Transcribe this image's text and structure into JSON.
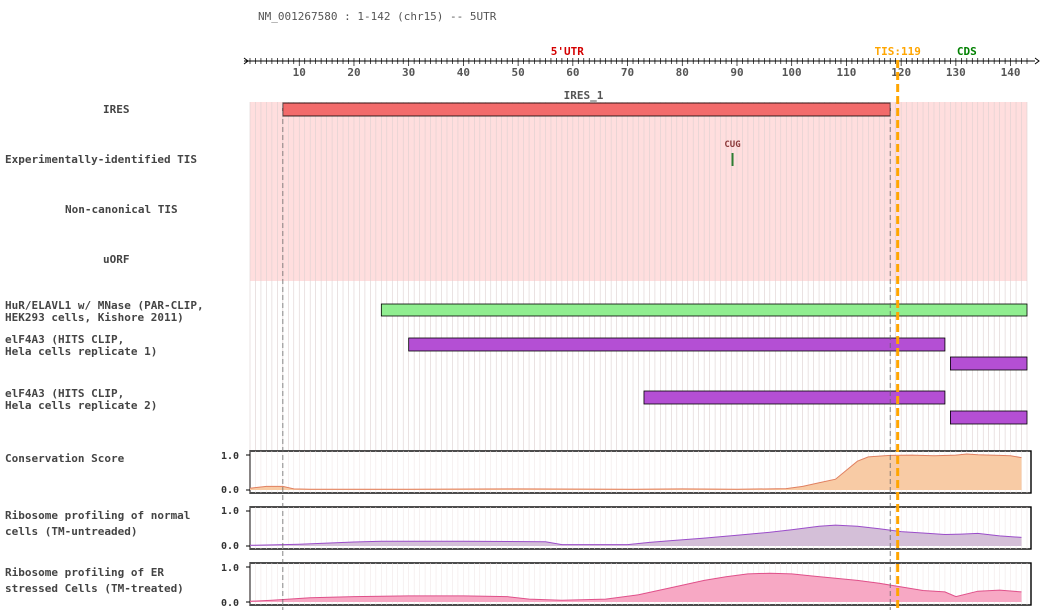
{
  "header": {
    "title": "NM_001267580 : 1-142 (chr15) -- 5UTR"
  },
  "axis": {
    "min": 1,
    "max": 142,
    "ticks": [
      10,
      20,
      30,
      40,
      50,
      60,
      70,
      80,
      90,
      100,
      110,
      120,
      130,
      140
    ],
    "region_5utr_label": "5'UTR",
    "cds_label": "CDS"
  },
  "tis": {
    "position": 119,
    "label": "TIS:119",
    "color": "#ffa500"
  },
  "colors": {
    "utr_label": "#d40000",
    "cds_label": "#008000",
    "utr_shade": "#ffdede",
    "grid_line": "#ddd0d0",
    "ires_bar": "#f26b6b",
    "hur_bar": "#90ee90",
    "eif4a3_bar": "#b44fd4",
    "tis_marker": "#2e7d32",
    "conservation": "#f8cba5",
    "conservation_line": "#e08060",
    "ribo_normal": "#d4bfd8",
    "ribo_normal_line": "#9b4dca",
    "ribo_er": "#f7a8c4",
    "ribo_er_line": "#e0508a"
  },
  "tracks": {
    "ires": {
      "label": "IRES",
      "start": 7,
      "end": 118,
      "name": "IRES_1"
    },
    "exp_tis": {
      "label": "Experimentally-identified TIS",
      "codon": "CUG",
      "position": 89
    },
    "noncanonical": {
      "label": "Non-canonical TIS"
    },
    "uorf": {
      "label": "uORF"
    },
    "hur": {
      "label_lines": [
        "HuR/ELAVL1 w/ MNase (PAR-CLIP,",
        "HEK293 cells, Kishore 2011)"
      ],
      "start": 25,
      "end": 142
    },
    "eif4a3_rep1": {
      "label_lines": [
        "elF4A3 (HITS CLIP,",
        "Hela cells replicate 1)"
      ],
      "segments": [
        [
          30,
          128
        ],
        [
          129,
          142
        ]
      ]
    },
    "eif4a3_rep2": {
      "label_lines": [
        "elF4A3 (HITS CLIP,",
        "Hela cells replicate 2)"
      ],
      "segments": [
        [
          73,
          128
        ],
        [
          129,
          142
        ]
      ]
    },
    "conservation": {
      "label": "Conservation Score",
      "ymax_label": "1.0",
      "ymin_label": "0.0",
      "values": [
        [
          1,
          0.05
        ],
        [
          4,
          0.1
        ],
        [
          7,
          0.1
        ],
        [
          9,
          0.03
        ],
        [
          12,
          0.02
        ],
        [
          30,
          0.02
        ],
        [
          50,
          0.03
        ],
        [
          70,
          0.02
        ],
        [
          80,
          0.03
        ],
        [
          90,
          0.02
        ],
        [
          99,
          0.04
        ],
        [
          102,
          0.1
        ],
        [
          105,
          0.2
        ],
        [
          108,
          0.3
        ],
        [
          110,
          0.55
        ],
        [
          112,
          0.8
        ],
        [
          114,
          0.92
        ],
        [
          118,
          0.96
        ],
        [
          122,
          0.97
        ],
        [
          126,
          0.95
        ],
        [
          130,
          0.97
        ],
        [
          132,
          1.0
        ],
        [
          134,
          0.98
        ],
        [
          138,
          0.96
        ],
        [
          140,
          0.95
        ],
        [
          142,
          0.9
        ]
      ]
    },
    "ribo_normal": {
      "label_lines": [
        "Ribosome profiling of normal",
        "cells (TM-untreaded)"
      ],
      "ymax_label": "1.0",
      "ymin_label": "0.0",
      "values": [
        [
          1,
          0.02
        ],
        [
          5,
          0.03
        ],
        [
          10,
          0.05
        ],
        [
          15,
          0.08
        ],
        [
          20,
          0.11
        ],
        [
          25,
          0.13
        ],
        [
          40,
          0.13
        ],
        [
          55,
          0.12
        ],
        [
          58,
          0.04
        ],
        [
          70,
          0.04
        ],
        [
          74,
          0.1
        ],
        [
          78,
          0.15
        ],
        [
          84,
          0.22
        ],
        [
          90,
          0.3
        ],
        [
          96,
          0.38
        ],
        [
          100,
          0.45
        ],
        [
          105,
          0.55
        ],
        [
          108,
          0.58
        ],
        [
          112,
          0.55
        ],
        [
          116,
          0.48
        ],
        [
          120,
          0.4
        ],
        [
          125,
          0.35
        ],
        [
          128,
          0.32
        ],
        [
          131,
          0.33
        ],
        [
          134,
          0.35
        ],
        [
          138,
          0.28
        ],
        [
          142,
          0.24
        ]
      ]
    },
    "ribo_er": {
      "label_lines": [
        "Ribosome profiling of ER",
        "stressed Cells (TM-treated)"
      ],
      "ymax_label": "1.0",
      "ymin_label": "0.0",
      "values": [
        [
          1,
          0.02
        ],
        [
          5,
          0.05
        ],
        [
          12,
          0.12
        ],
        [
          20,
          0.15
        ],
        [
          30,
          0.17
        ],
        [
          40,
          0.17
        ],
        [
          48,
          0.15
        ],
        [
          52,
          0.08
        ],
        [
          58,
          0.05
        ],
        [
          66,
          0.08
        ],
        [
          72,
          0.2
        ],
        [
          78,
          0.4
        ],
        [
          84,
          0.6
        ],
        [
          88,
          0.7
        ],
        [
          92,
          0.78
        ],
        [
          96,
          0.8
        ],
        [
          100,
          0.78
        ],
        [
          104,
          0.72
        ],
        [
          108,
          0.66
        ],
        [
          112,
          0.6
        ],
        [
          116,
          0.52
        ],
        [
          120,
          0.42
        ],
        [
          124,
          0.32
        ],
        [
          128,
          0.28
        ],
        [
          130,
          0.15
        ],
        [
          134,
          0.3
        ],
        [
          138,
          0.33
        ],
        [
          142,
          0.28
        ]
      ]
    }
  }
}
